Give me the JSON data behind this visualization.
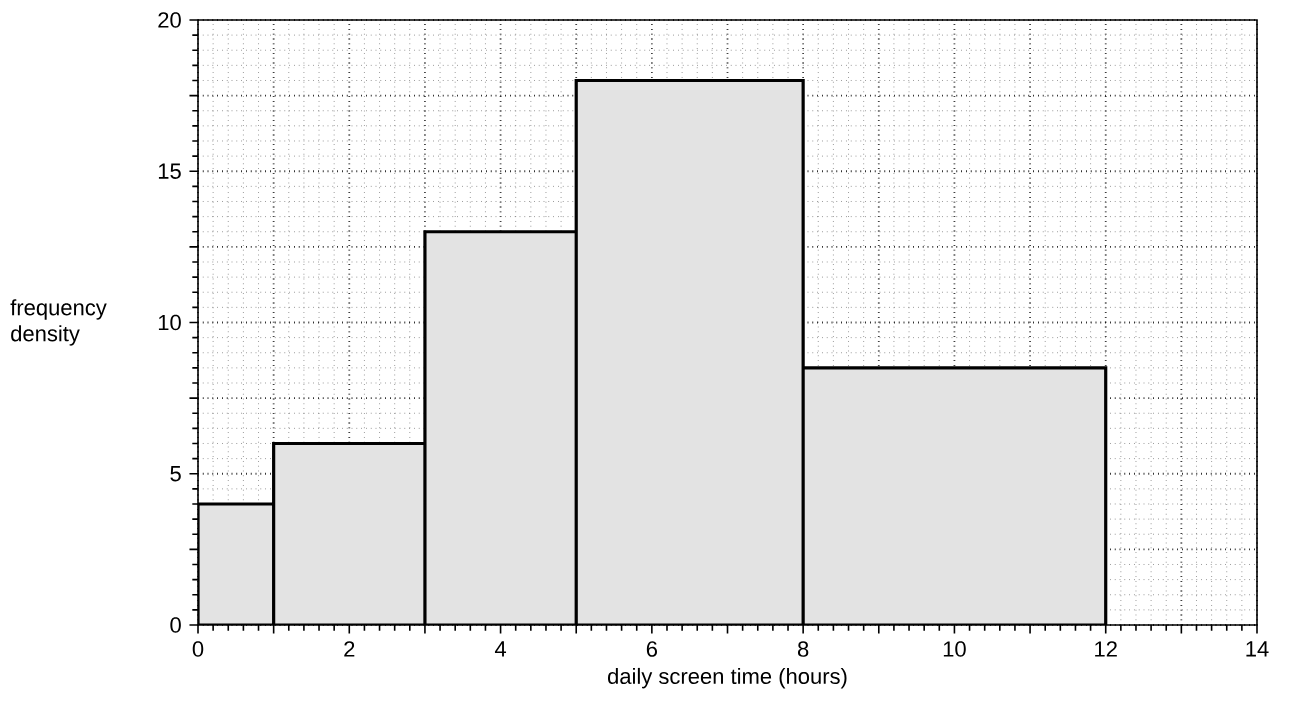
{
  "chart_data": {
    "type": "histogram",
    "xlabel": "daily screen time (hours)",
    "ylabel": "frequency density",
    "bins": [
      0,
      1,
      3,
      5,
      8,
      12
    ],
    "values": [
      4,
      6,
      13,
      18,
      8.5
    ],
    "color": "#e3e3e3",
    "xlim": [
      0,
      14
    ],
    "ylim": [
      0,
      20
    ],
    "xticks": [
      0,
      {
        "value": 1,
        "label": null
      },
      2,
      {
        "value": 3,
        "label": null
      },
      4,
      {
        "value": 5,
        "label": null
      },
      6,
      {
        "value": 7,
        "label": null
      },
      8,
      {
        "value": 9,
        "label": null
      },
      10,
      {
        "value": 11,
        "label": null
      },
      12,
      {
        "value": 13,
        "label": null
      },
      14
    ],
    "yticks": [
      0,
      {
        "value": 2.5,
        "label": null
      },
      5,
      {
        "value": 7.5,
        "label": null
      },
      10,
      {
        "value": 12.5,
        "label": null
      },
      15,
      {
        "value": 17.5,
        "label": null
      },
      20
    ],
    "grid": true
  }
}
